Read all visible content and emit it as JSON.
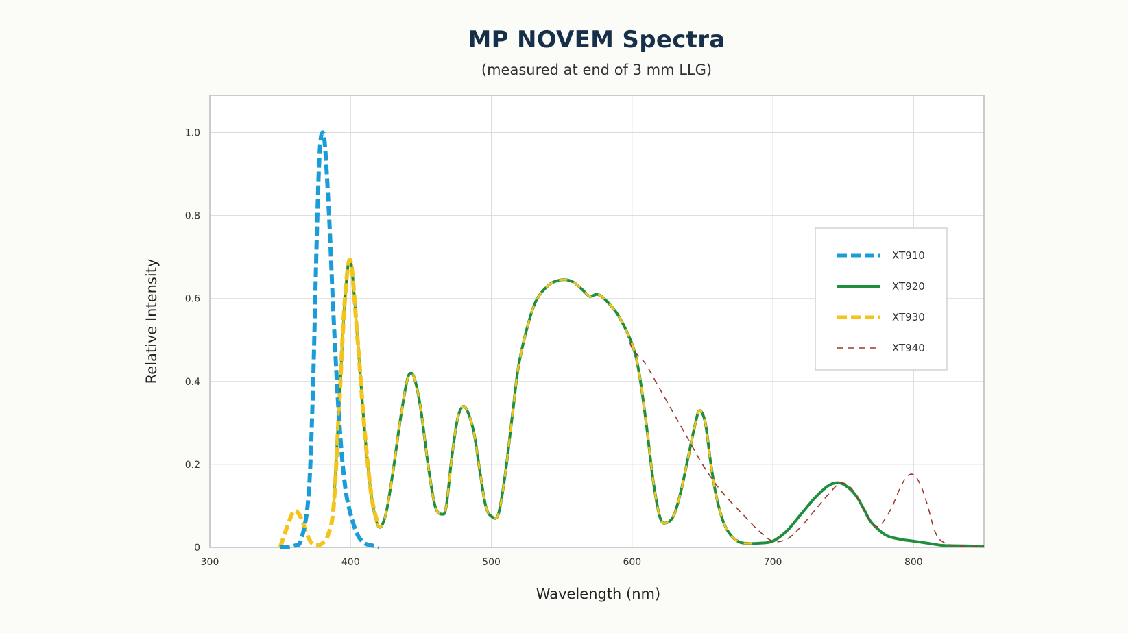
{
  "chart_data": {
    "type": "line",
    "title": "MP NOVEM Spectra",
    "subtitle": "(measured at end of 3 mm LLG)",
    "xlabel": "Wavelength (nm)",
    "ylabel": "Relative Intensity",
    "xlim": [
      300,
      850
    ],
    "ylim": [
      0,
      1.09
    ],
    "xticks": [
      300,
      400,
      500,
      600,
      700,
      800
    ],
    "xtick_labels": [
      "300",
      "400",
      "500",
      "600",
      "700",
      "800"
    ],
    "yticks": [
      0,
      0.2,
      0.4,
      0.6,
      0.8,
      1.0
    ],
    "ytick_labels": [
      "0",
      "0.2",
      "0.4",
      "0.6",
      "0.8",
      "1.0"
    ],
    "grid": true,
    "legend_position": "right",
    "series": [
      {
        "name": "XT910",
        "color": "#1a9cd8",
        "style": "thick-dashed",
        "x": [
          350,
          360,
          365,
          370,
          373,
          376,
          378,
          380,
          382,
          385,
          388,
          392,
          396,
          400,
          405,
          410,
          415,
          420
        ],
        "y": [
          0,
          0.004,
          0.02,
          0.12,
          0.35,
          0.75,
          0.95,
          1.0,
          0.96,
          0.78,
          0.55,
          0.3,
          0.15,
          0.08,
          0.03,
          0.01,
          0.005,
          0.0
        ]
      },
      {
        "name": "XT920",
        "color": "#1f8f3f",
        "style": "solid",
        "x": [
          388,
          392,
          396,
          400,
          405,
          410,
          415,
          420,
          425,
          430,
          435,
          440,
          443,
          446,
          450,
          455,
          460,
          465,
          468,
          472,
          476,
          480,
          484,
          488,
          492,
          496,
          500,
          505,
          510,
          515,
          520,
          530,
          540,
          550,
          558,
          565,
          570,
          575,
          580,
          590,
          600,
          605,
          610,
          615,
          620,
          625,
          630,
          635,
          640,
          645,
          648,
          652,
          656,
          660,
          665,
          670,
          675,
          680,
          690,
          700,
          710,
          720,
          730,
          740,
          748,
          755,
          760,
          765,
          770,
          780,
          790,
          800,
          810,
          820,
          830,
          850
        ],
        "y": [
          0.1,
          0.35,
          0.6,
          0.69,
          0.5,
          0.28,
          0.12,
          0.05,
          0.08,
          0.18,
          0.3,
          0.4,
          0.42,
          0.4,
          0.33,
          0.2,
          0.1,
          0.08,
          0.1,
          0.22,
          0.31,
          0.34,
          0.32,
          0.27,
          0.18,
          0.1,
          0.075,
          0.08,
          0.18,
          0.32,
          0.45,
          0.58,
          0.63,
          0.645,
          0.64,
          0.62,
          0.605,
          0.61,
          0.6,
          0.56,
          0.49,
          0.42,
          0.3,
          0.16,
          0.07,
          0.06,
          0.08,
          0.14,
          0.22,
          0.3,
          0.33,
          0.3,
          0.2,
          0.12,
          0.06,
          0.03,
          0.015,
          0.01,
          0.01,
          0.015,
          0.04,
          0.08,
          0.12,
          0.15,
          0.155,
          0.14,
          0.12,
          0.09,
          0.06,
          0.03,
          0.02,
          0.015,
          0.01,
          0.005,
          0.004,
          0.003
        ]
      },
      {
        "name": "XT930",
        "color": "#f4c41c",
        "style": "thick-dashed",
        "x": [
          350,
          355,
          360,
          365,
          368,
          372,
          376,
          380,
          384,
          388,
          392,
          396,
          400,
          405,
          410,
          415,
          420
        ],
        "y": [
          0,
          0.05,
          0.088,
          0.07,
          0.04,
          0.012,
          0.005,
          0.01,
          0.03,
          0.1,
          0.35,
          0.6,
          0.69,
          0.5,
          0.28,
          0.12,
          0.05
        ]
      },
      {
        "name": "XT940",
        "color": "#9a3b2c",
        "style": "thin-dashed",
        "x": [
          596,
          600,
          605,
          610,
          620,
          630,
          640,
          650,
          660,
          670,
          680,
          690,
          700,
          710,
          720,
          730,
          740,
          748,
          755,
          760,
          765,
          770,
          775,
          780,
          785,
          790,
          795,
          800,
          805,
          810,
          815,
          820,
          830,
          850
        ],
        "y": [
          0.52,
          0.48,
          0.46,
          0.44,
          0.38,
          0.32,
          0.26,
          0.2,
          0.15,
          0.11,
          0.075,
          0.04,
          0.015,
          0.02,
          0.05,
          0.09,
          0.13,
          0.155,
          0.145,
          0.12,
          0.09,
          0.06,
          0.05,
          0.07,
          0.1,
          0.14,
          0.17,
          0.175,
          0.15,
          0.1,
          0.04,
          0.015,
          0.004,
          0.002
        ]
      }
    ]
  }
}
